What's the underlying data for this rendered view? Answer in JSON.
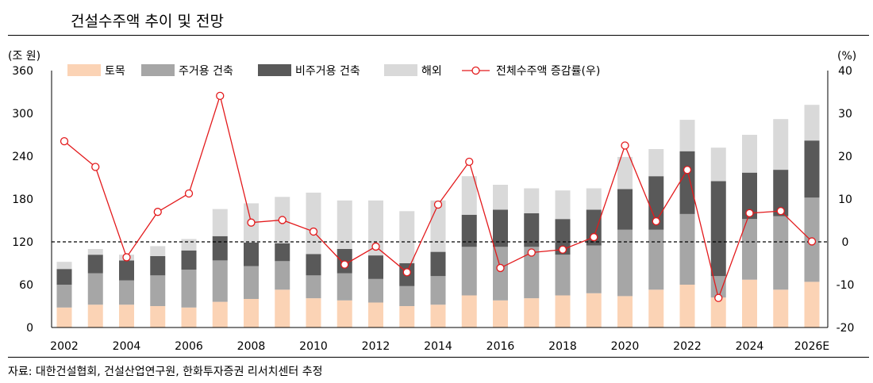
{
  "title": "건설수주액 추이 및 전망",
  "source": "자료: 대한건설협회, 건설산업연구원, 한화투자증권 리서치센터 추정",
  "colors": {
    "civil": "#fbd3b5",
    "residential": "#a6a6a6",
    "nonresidential": "#595959",
    "overseas": "#d9d9d9",
    "growth": "#e31a1c"
  },
  "chart_data": {
    "type": "bar",
    "stacked": true,
    "left_axis_label": "(조 원)",
    "right_axis_label": "(%)",
    "ylim_left": [
      0,
      360
    ],
    "ylim_right": [
      -20,
      40
    ],
    "yticks_left": [
      0,
      60,
      120,
      180,
      240,
      300,
      360
    ],
    "yticks_right": [
      -20,
      -10,
      0,
      10,
      20,
      30,
      40
    ],
    "categories": [
      "2002",
      "2003",
      "2004",
      "2005",
      "2006",
      "2007",
      "2008",
      "2009",
      "2010",
      "2011",
      "2012",
      "2013",
      "2014",
      "2015",
      "2016",
      "2017",
      "2018",
      "2019",
      "2020",
      "2021",
      "2022",
      "2023",
      "2024",
      "2025",
      "2026E"
    ],
    "xtick_labels": [
      "2002",
      "2004",
      "2006",
      "2008",
      "2010",
      "2012",
      "2014",
      "2016",
      "2018",
      "2020",
      "2022",
      "2024",
      "2026E"
    ],
    "series": [
      {
        "name": "토목",
        "values": [
          28,
          32,
          32,
          30,
          28,
          36,
          40,
          53,
          41,
          38,
          35,
          30,
          32,
          45,
          38,
          41,
          45,
          48,
          44,
          53,
          60,
          42,
          67,
          53,
          64
        ]
      },
      {
        "name": "주거용 건축",
        "values": [
          32,
          44,
          34,
          43,
          53,
          58,
          46,
          40,
          32,
          38,
          33,
          28,
          40,
          68,
          75,
          72,
          57,
          67,
          93,
          84,
          99,
          30,
          85,
          103,
          118
        ]
      },
      {
        "name": "비주거용 건축",
        "values": [
          22,
          26,
          28,
          27,
          27,
          34,
          33,
          25,
          30,
          34,
          33,
          32,
          34,
          45,
          52,
          47,
          50,
          50,
          57,
          75,
          88,
          133,
          65,
          65,
          80
        ]
      },
      {
        "name": "해외",
        "values": [
          10,
          8,
          8,
          14,
          16,
          38,
          55,
          65,
          86,
          68,
          77,
          73,
          72,
          54,
          35,
          35,
          40,
          30,
          45,
          38,
          44,
          47,
          53,
          71,
          50
        ]
      },
      {
        "name": "전체수주액 증감률(우)",
        "axis": "right",
        "type": "line",
        "values": [
          23.5,
          17.5,
          -3.6,
          7.0,
          11.3,
          34.1,
          4.5,
          5.1,
          2.4,
          -5.3,
          -1.1,
          -7.1,
          8.7,
          18.7,
          -6.1,
          -2.5,
          -1.8,
          1.1,
          22.5,
          4.8,
          16.8,
          -13.1,
          6.7,
          7.2,
          0.1
        ]
      }
    ],
    "reference_line": {
      "axis": "right",
      "value": 0,
      "style": "dashed"
    },
    "legend_position": "top"
  }
}
